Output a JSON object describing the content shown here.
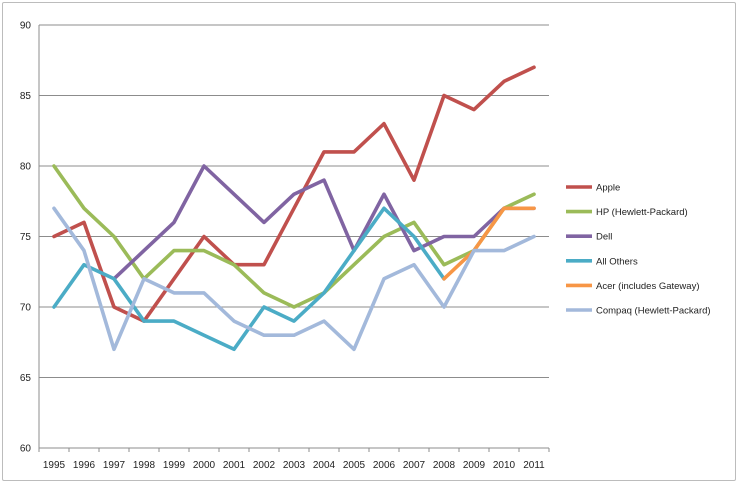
{
  "chart_data": {
    "type": "line",
    "title": "",
    "xlabel": "",
    "ylabel": "",
    "x": [
      "1995",
      "1996",
      "1997",
      "1998",
      "1999",
      "2000",
      "2001",
      "2002",
      "2003",
      "2004",
      "2005",
      "2006",
      "2007",
      "2008",
      "2009",
      "2010",
      "2011"
    ],
    "ylim": [
      60,
      90
    ],
    "yticks": [
      60,
      65,
      70,
      75,
      80,
      85,
      90
    ],
    "grid": "horizontal",
    "legend_position": "right",
    "series": [
      {
        "name": "Apple",
        "color": "#C0504D",
        "values": [
          75,
          76,
          70,
          69,
          72,
          75,
          73,
          73,
          77,
          81,
          81,
          83,
          79,
          85,
          84,
          86,
          87
        ]
      },
      {
        "name": "HP (Hewlett-Packard)",
        "color": "#9BBB59",
        "values": [
          80,
          77,
          75,
          72,
          74,
          74,
          73,
          71,
          70,
          71,
          73,
          75,
          76,
          73,
          74,
          77,
          78
        ]
      },
      {
        "name": "Dell",
        "color": "#8064A2",
        "values": [
          null,
          null,
          72,
          74,
          76,
          80,
          78,
          76,
          78,
          79,
          74,
          78,
          74,
          75,
          75,
          77,
          77
        ]
      },
      {
        "name": "All Others",
        "color": "#4BACC6",
        "values": [
          70,
          73,
          72,
          69,
          69,
          68,
          67,
          70,
          69,
          71,
          74,
          77,
          75,
          72,
          null,
          null,
          null
        ]
      },
      {
        "name": "Acer (includes Gateway)",
        "color": "#F79646",
        "values": [
          null,
          null,
          null,
          null,
          null,
          null,
          null,
          null,
          null,
          null,
          null,
          null,
          null,
          72,
          74,
          77,
          77
        ]
      },
      {
        "name": "Compaq (Hewlett-Packard)",
        "color": "#A3B9DB",
        "values": [
          77,
          74,
          67,
          72,
          71,
          71,
          69,
          68,
          68,
          69,
          67,
          72,
          73,
          70,
          74,
          74,
          75
        ]
      }
    ]
  }
}
